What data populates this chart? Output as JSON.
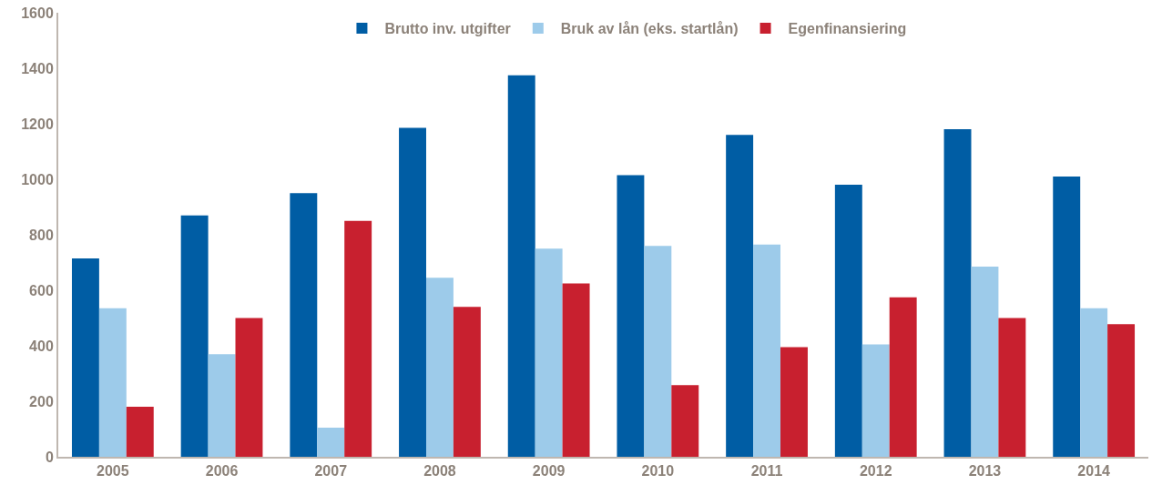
{
  "chart_data": {
    "type": "bar",
    "categories": [
      "2005",
      "2006",
      "2007",
      "2008",
      "2009",
      "2010",
      "2011",
      "2012",
      "2013",
      "2014"
    ],
    "series": [
      {
        "name": "Brutto inv. utgifter",
        "color": "#005da4",
        "values": [
          715,
          870,
          950,
          1185,
          1375,
          1015,
          1160,
          980,
          1180,
          1010
        ]
      },
      {
        "name": "Bruk av lån (eks. startlån)",
        "color": "#9dcbea",
        "values": [
          535,
          370,
          105,
          645,
          750,
          760,
          765,
          405,
          685,
          535
        ]
      },
      {
        "name": "Egenfinansiering",
        "color": "#c8202f",
        "values": [
          180,
          500,
          850,
          540,
          625,
          258,
          395,
          575,
          500,
          478
        ]
      }
    ],
    "ylim": [
      0,
      1600
    ],
    "yticks": [
      0,
      200,
      400,
      600,
      800,
      1000,
      1200,
      1400,
      1600
    ],
    "legend": "top"
  }
}
